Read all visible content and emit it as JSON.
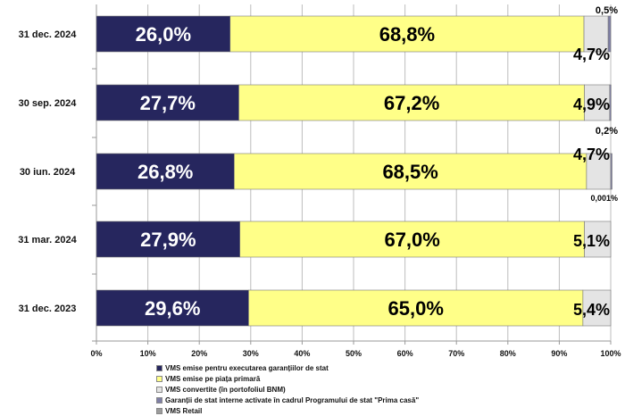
{
  "chart_data": {
    "type": "bar",
    "orientation": "horizontal",
    "stacked": true,
    "categories": [
      "31 dec. 2024",
      "30 sep. 2024",
      "30 iun. 2024",
      "31 mar. 2024",
      "31 dec. 2023"
    ],
    "series": [
      {
        "name": "VMS emise pentru executarea garanțiilor de stat",
        "color": "#26265e",
        "label_color": "#ffffff",
        "values": [
          26.0,
          27.7,
          26.8,
          27.9,
          29.6
        ],
        "labels": [
          "26,0%",
          "27,7%",
          "26,8%",
          "27,9%",
          "29,6%"
        ]
      },
      {
        "name": "VMS emise pe piața primară",
        "color": "#ffff88",
        "label_color": "#000000",
        "values": [
          68.8,
          67.2,
          68.5,
          67.0,
          65.0
        ],
        "labels": [
          "68,8%",
          "67,2%",
          "68,5%",
          "67,0%",
          "65,0%"
        ]
      },
      {
        "name": "VMS convertite (în portofoliul BNM)",
        "color": "#e4e4e4",
        "label_color": "#000000",
        "values": [
          4.7,
          4.9,
          4.7,
          5.1,
          5.4
        ],
        "labels": [
          "4,7%",
          "4,9%",
          "4,7%",
          "5,1%",
          "5,4%"
        ]
      },
      {
        "name": "Garanții de stat interne activate în cadrul Programului de stat \"Prima casă\"",
        "color": "#7f7fa6",
        "label_color": "#000000",
        "values": [
          0.5,
          0.2,
          0.001,
          0.0,
          0.0
        ],
        "labels": [
          "0,5%",
          "0,2%",
          "0,001%",
          "",
          ""
        ]
      },
      {
        "name": "VMS Retail",
        "color": "#9c9c9c",
        "label_color": "#000000",
        "values": [
          0.0,
          0.0,
          0.0,
          0.0,
          0.0
        ],
        "labels": [
          "",
          "",
          "",
          "",
          ""
        ]
      }
    ],
    "xlim": [
      0,
      100
    ],
    "x_ticks": [
      "0%",
      "10%",
      "20%",
      "30%",
      "40%",
      "50%",
      "60%",
      "70%",
      "80%",
      "90%",
      "100%"
    ],
    "grid": true,
    "legend_position": "bottom"
  }
}
